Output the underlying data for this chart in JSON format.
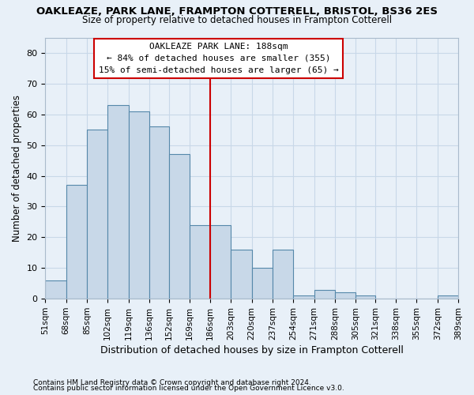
{
  "title": "OAKLEAZE, PARK LANE, FRAMPTON COTTERELL, BRISTOL, BS36 2ES",
  "subtitle": "Size of property relative to detached houses in Frampton Cotterell",
  "xlabel": "Distribution of detached houses by size in Frampton Cotterell",
  "ylabel": "Number of detached properties",
  "footnote1": "Contains HM Land Registry data © Crown copyright and database right 2024.",
  "footnote2": "Contains public sector information licensed under the Open Government Licence v3.0.",
  "bin_edges": [
    51,
    68,
    85,
    102,
    119,
    136,
    152,
    169,
    186,
    203,
    220,
    237,
    254,
    271,
    288,
    305,
    321,
    338,
    355,
    372,
    389
  ],
  "tick_labels": [
    "51sqm",
    "68sqm",
    "85sqm",
    "102sqm",
    "119sqm",
    "136sqm",
    "152sqm",
    "169sqm",
    "186sqm",
    "203sqm",
    "220sqm",
    "237sqm",
    "254sqm",
    "271sqm",
    "288sqm",
    "305sqm",
    "321sqm",
    "338sqm",
    "355sqm",
    "372sqm",
    "389sqm"
  ],
  "values": [
    6,
    37,
    55,
    63,
    61,
    56,
    47,
    24,
    24,
    16,
    10,
    16,
    1,
    3,
    2,
    1,
    0,
    0,
    0,
    1
  ],
  "bar_color": "#c8d8e8",
  "bar_edge_color": "#5588aa",
  "grid_color": "#c8d8e8",
  "background_color": "#e8f0f8",
  "annotation_text_line1": "OAKLEAZE PARK LANE: 188sqm",
  "annotation_text_line2": "← 84% of detached houses are smaller (355)",
  "annotation_text_line3": "15% of semi-detached houses are larger (65) →",
  "annotation_box_color": "#cc0000",
  "vline_position": 186,
  "vline_color": "#cc0000",
  "ylim": [
    0,
    85
  ],
  "yticks": [
    0,
    10,
    20,
    30,
    40,
    50,
    60,
    70,
    80
  ]
}
